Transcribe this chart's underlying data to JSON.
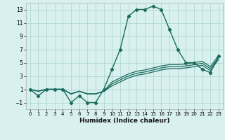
{
  "xlabel": "Humidex (Indice chaleur)",
  "x": [
    0,
    1,
    2,
    3,
    4,
    5,
    6,
    7,
    8,
    9,
    10,
    11,
    12,
    13,
    14,
    15,
    16,
    17,
    18,
    19,
    20,
    21,
    22,
    23
  ],
  "main_line": [
    1,
    0,
    1,
    1,
    1,
    -1,
    0,
    -1,
    -1,
    1,
    4,
    7,
    12,
    13,
    13,
    13.5,
    13,
    10,
    7,
    5,
    5,
    4,
    3.5,
    6
  ],
  "band_lines": [
    [
      1,
      0.7,
      1,
      1,
      1,
      0.3,
      0.7,
      0.3,
      0.3,
      0.7,
      1.5,
      2.1,
      2.7,
      3.1,
      3.3,
      3.6,
      3.9,
      4.1,
      4.1,
      4.2,
      4.4,
      4.6,
      3.8,
      5.5
    ],
    [
      1,
      0.7,
      1,
      1,
      1,
      0.3,
      0.7,
      0.3,
      0.3,
      0.7,
      1.8,
      2.4,
      3.0,
      3.4,
      3.6,
      3.9,
      4.2,
      4.4,
      4.4,
      4.5,
      4.7,
      4.9,
      4.1,
      5.8
    ],
    [
      1,
      0.7,
      1,
      1,
      1,
      0.3,
      0.7,
      0.3,
      0.3,
      0.7,
      2.1,
      2.7,
      3.3,
      3.7,
      3.9,
      4.2,
      4.5,
      4.7,
      4.7,
      4.8,
      5.0,
      5.2,
      4.4,
      6.1
    ]
  ],
  "line_color": "#1a6b5e",
  "background_color": "#d8f0ee",
  "grid_color": "#b0d8d4",
  "ylim": [
    -2,
    14
  ],
  "xlim": [
    -0.5,
    23.5
  ],
  "yticks": [
    -1,
    1,
    3,
    5,
    7,
    9,
    11,
    13
  ],
  "xticks": [
    0,
    1,
    2,
    3,
    4,
    5,
    6,
    7,
    8,
    9,
    10,
    11,
    12,
    13,
    14,
    15,
    16,
    17,
    18,
    19,
    20,
    21,
    22,
    23
  ]
}
